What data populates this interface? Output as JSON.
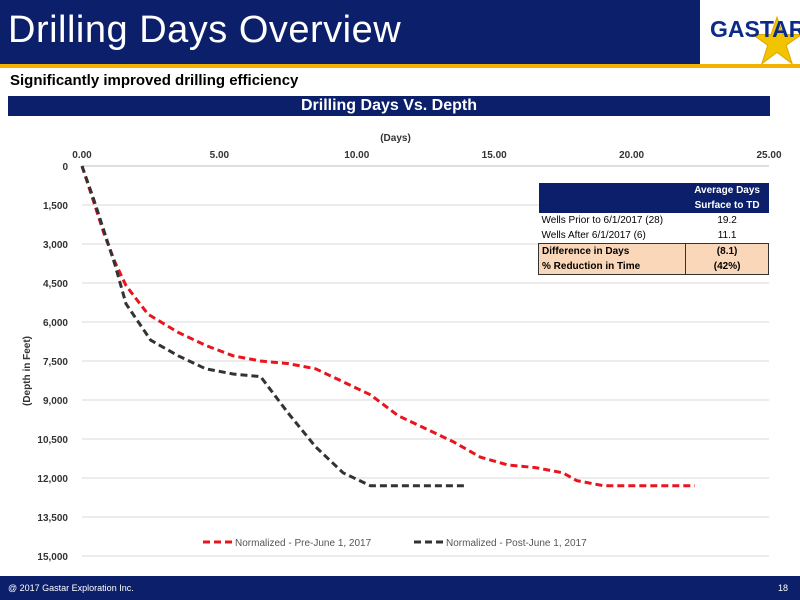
{
  "header": {
    "title": "Drilling Days Overview"
  },
  "logo": {
    "text": "GASTAR"
  },
  "subtitle": "Significantly improved drilling efficiency",
  "chart_title": "Drilling Days Vs. Depth",
  "footer": {
    "copyright": "@ 2017 Gastar Exploration Inc.",
    "page": "18"
  },
  "colors": {
    "navy": "#0b1f6b",
    "gold": "#f2b300",
    "pre_series": "#e8141e",
    "post_series": "#333333",
    "highlight": "#fad7b9"
  },
  "table": {
    "header_line1": "Average Days",
    "header_line2": "Surface to TD",
    "rows": [
      {
        "label": "Wells Prior to 6/1/2017 (28)",
        "value": "19.2"
      },
      {
        "label": "Wells After 6/1/2017 (6)",
        "value": "11.1"
      }
    ],
    "summary": [
      {
        "label": "Difference in Days",
        "value": "(8.1)"
      },
      {
        "label": "% Reduction in Time",
        "value": "(42%)"
      }
    ]
  },
  "chart_data": {
    "type": "line",
    "xlabel": "(Days)",
    "ylabel": "(Depth in Feet)",
    "x_axis_position": "top",
    "y_reversed": true,
    "xlim": [
      0,
      25
    ],
    "ylim": [
      0,
      15000
    ],
    "x_ticks": [
      "0.00",
      "5.00",
      "10.00",
      "15.00",
      "20.00",
      "25.00"
    ],
    "y_ticks": [
      "0",
      "1,500",
      "3,000",
      "4,500",
      "6,000",
      "7,500",
      "9,000",
      "10,500",
      "12,000",
      "13,500",
      "15,000"
    ],
    "grid": true,
    "legend_position": "bottom",
    "series": [
      {
        "name": "Normalized - Pre-June 1, 2017",
        "x": [
          0.0,
          0.4,
          0.8,
          1.2,
          1.6,
          2.4,
          3.5,
          4.5,
          5.5,
          6.5,
          7.5,
          8.5,
          9.5,
          10.5,
          11.5,
          12.5,
          13.5,
          14.5,
          15.5,
          16.5,
          17.5,
          18.0,
          19.0,
          20.0,
          21.0,
          22.0,
          22.3
        ],
        "y": [
          0,
          1300,
          2600,
          3700,
          4600,
          5700,
          6400,
          6900,
          7300,
          7500,
          7600,
          7800,
          8300,
          8800,
          9600,
          10100,
          10600,
          11200,
          11500,
          11600,
          11800,
          12100,
          12300,
          12300,
          12300,
          12300,
          12300
        ]
      },
      {
        "name": "Normalized - Post-June 1, 2017",
        "x": [
          0.0,
          0.4,
          0.8,
          1.2,
          1.6,
          2.5,
          3.5,
          4.5,
          5.5,
          6.5,
          7.5,
          8.5,
          9.5,
          10.5,
          11.0,
          12.0,
          13.0,
          13.9
        ],
        "y": [
          0,
          1200,
          2500,
          3800,
          5300,
          6700,
          7300,
          7800,
          8000,
          8100,
          9500,
          10800,
          11800,
          12300,
          12300,
          12300,
          12300,
          12300
        ]
      }
    ]
  }
}
